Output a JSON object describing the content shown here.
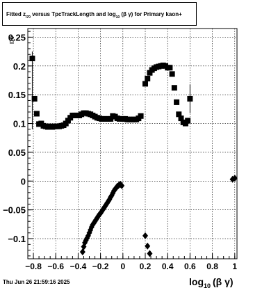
{
  "header": {
    "title_p1": "Fitted  z",
    "title_sub1": "I70",
    "title_p2": "  versus TpcTrackLength and log",
    "title_sub2": "10",
    "title_p3": " (β  γ) for Primary kaon+"
  },
  "footer": {
    "timestamp": "Thu Jun 26 21:59:16 2025"
  },
  "chart_data": {
    "type": "scatter",
    "title": "Fitted z_I70 versus TpcTrackLength and log10(β γ) for Primary kaon+",
    "xlabel_main": "log",
    "xlabel_sub": "10",
    "xlabel_tail": "(β γ)",
    "ylabel": "I70",
    "xlim": [
      -0.85,
      1.02
    ],
    "ylim": [
      -0.135,
      0.265
    ],
    "grid": true,
    "x_ticks": [
      -0.8,
      -0.6,
      -0.4,
      -0.2,
      0,
      0.2,
      0.4,
      0.6,
      0.8,
      1
    ],
    "x_tick_labels": [
      "−0.8",
      "−0.6",
      "−0.4",
      "−0.2",
      "0",
      "0.2",
      "0.4",
      "0.6",
      "0.8",
      "1"
    ],
    "y_ticks": [
      -0.1,
      -0.05,
      0,
      0.05,
      0.1,
      0.15,
      0.2,
      0.25
    ],
    "y_tick_labels": [
      "−0.1",
      "−0.05",
      "0",
      "0.05",
      "0.1",
      "0.15",
      "0.2",
      "0.25"
    ],
    "series": [
      {
        "marker": "square",
        "points": [
          [
            -0.81,
            0.213
          ],
          [
            -0.79,
            0.143
          ],
          [
            -0.77,
            0.117
          ],
          [
            -0.75,
            0.099
          ],
          [
            -0.73,
            0.1
          ],
          [
            -0.71,
            0.096
          ],
          [
            -0.69,
            0.095
          ],
          [
            -0.67,
            0.094
          ],
          [
            -0.65,
            0.095
          ],
          [
            -0.63,
            0.094
          ],
          [
            -0.61,
            0.095
          ],
          [
            -0.59,
            0.095
          ],
          [
            -0.57,
            0.095
          ],
          [
            -0.55,
            0.096
          ],
          [
            -0.53,
            0.097
          ],
          [
            -0.51,
            0.1
          ],
          [
            -0.49,
            0.105
          ],
          [
            -0.47,
            0.11
          ],
          [
            -0.45,
            0.114
          ],
          [
            -0.43,
            0.114
          ],
          [
            -0.41,
            0.114
          ],
          [
            -0.39,
            0.114
          ],
          [
            -0.37,
            0.116
          ],
          [
            -0.35,
            0.118
          ],
          [
            -0.33,
            0.118
          ],
          [
            -0.31,
            0.117
          ],
          [
            -0.29,
            0.116
          ],
          [
            -0.27,
            0.114
          ],
          [
            -0.25,
            0.112
          ],
          [
            -0.23,
            0.11
          ],
          [
            -0.21,
            0.109
          ],
          [
            -0.19,
            0.108
          ],
          [
            -0.17,
            0.108
          ],
          [
            -0.15,
            0.108
          ],
          [
            -0.13,
            0.108
          ],
          [
            -0.11,
            0.108
          ],
          [
            -0.09,
            0.113
          ],
          [
            -0.07,
            0.112
          ],
          [
            -0.05,
            0.109
          ],
          [
            -0.03,
            0.108
          ],
          [
            0.0,
            0.108
          ],
          [
            0.02,
            0.108
          ],
          [
            0.04,
            0.107
          ],
          [
            0.06,
            0.107
          ],
          [
            0.08,
            0.107
          ],
          [
            0.1,
            0.107
          ],
          [
            0.12,
            0.107
          ],
          [
            0.14,
            0.109
          ],
          [
            0.16,
            0.113
          ],
          [
            0.2,
            0.169
          ],
          [
            0.22,
            0.178
          ],
          [
            0.24,
            0.188
          ],
          [
            0.26,
            0.193
          ],
          [
            0.28,
            0.196
          ],
          [
            0.3,
            0.198
          ],
          [
            0.32,
            0.199
          ],
          [
            0.34,
            0.2
          ],
          [
            0.36,
            0.201
          ],
          [
            0.38,
            0.2
          ],
          [
            0.4,
            0.197
          ],
          [
            0.42,
            0.197
          ],
          [
            0.44,
            0.186
          ],
          [
            0.46,
            0.162
          ],
          [
            0.48,
            0.137
          ],
          [
            0.5,
            0.116
          ],
          [
            0.52,
            0.109
          ],
          [
            0.54,
            0.102
          ],
          [
            0.56,
            0.1
          ],
          [
            0.58,
            0.105
          ],
          [
            0.6,
            0.143
          ]
        ]
      },
      {
        "marker": "diamond",
        "points": [
          [
            -0.36,
            -0.123
          ],
          [
            -0.35,
            -0.114
          ],
          [
            -0.34,
            -0.107
          ],
          [
            -0.33,
            -0.103
          ],
          [
            -0.32,
            -0.099
          ],
          [
            -0.31,
            -0.095
          ],
          [
            -0.3,
            -0.09
          ],
          [
            -0.29,
            -0.085
          ],
          [
            -0.28,
            -0.08
          ],
          [
            -0.27,
            -0.076
          ],
          [
            -0.26,
            -0.073
          ],
          [
            -0.25,
            -0.07
          ],
          [
            -0.24,
            -0.067
          ],
          [
            -0.23,
            -0.064
          ],
          [
            -0.22,
            -0.061
          ],
          [
            -0.21,
            -0.058
          ],
          [
            -0.2,
            -0.056
          ],
          [
            -0.19,
            -0.053
          ],
          [
            -0.18,
            -0.05
          ],
          [
            -0.17,
            -0.047
          ],
          [
            -0.16,
            -0.044
          ],
          [
            -0.15,
            -0.041
          ],
          [
            -0.14,
            -0.038
          ],
          [
            -0.13,
            -0.035
          ],
          [
            -0.12,
            -0.032
          ],
          [
            -0.11,
            -0.028
          ],
          [
            -0.1,
            -0.025
          ],
          [
            -0.09,
            -0.021
          ],
          [
            -0.08,
            -0.017
          ],
          [
            -0.07,
            -0.014
          ],
          [
            -0.06,
            -0.012
          ],
          [
            -0.05,
            -0.009
          ],
          [
            -0.04,
            -0.008
          ],
          [
            -0.03,
            -0.006
          ],
          [
            -0.02,
            -0.006
          ],
          [
            -0.01,
            -0.008
          ],
          [
            0.2,
            -0.095
          ],
          [
            0.22,
            -0.113
          ],
          [
            0.24,
            -0.126
          ],
          [
            0.98,
            0.003
          ],
          [
            1.0,
            0.005
          ]
        ]
      }
    ],
    "error_bars": [
      {
        "x": -0.81,
        "lo": 0.09,
        "hi": 0.225
      },
      {
        "x": 0.6,
        "lo": 0.118,
        "hi": 0.168
      }
    ]
  }
}
